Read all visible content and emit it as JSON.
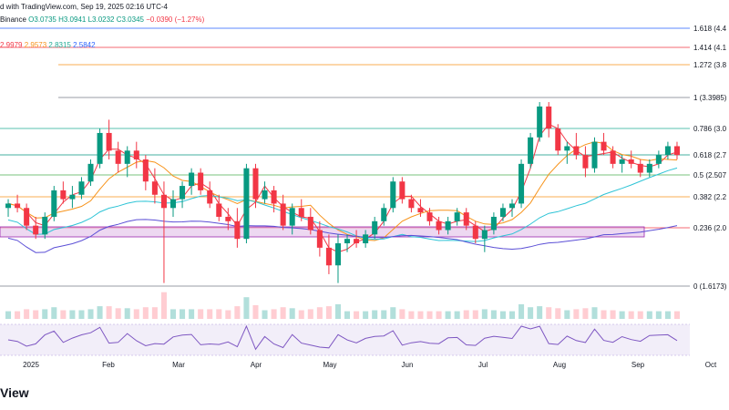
{
  "header": {
    "publisher": "d with TradingView.com, Sep 19, 2025 02:16 UTC-4",
    "exchange": "Binance",
    "ohlc": {
      "o": "O3.0735",
      "h": "H3.0941",
      "l": "L3.0232",
      "c": "C3.0345",
      "chg": "−0.0390 (−1.27%)"
    },
    "ma_values": {
      "v1": "2.9979",
      "v2": "2.9573",
      "v3": "2.8315",
      "v4": "2.5842"
    }
  },
  "fib_levels": [
    {
      "label": "1.618 (4.4",
      "price": 4.4,
      "color": "#2962ff"
    },
    {
      "label": "1.414 (4.1",
      "price": 4.1,
      "color": "#f23645"
    },
    {
      "label": "1.272 (3.8",
      "price": 3.8,
      "color": "#f7931a"
    },
    {
      "label": "1 (3.3985)",
      "price": 3.3985,
      "color": "#787b86"
    },
    {
      "label": "0.786 (3.0",
      "price": 3.0,
      "color": "#22ab94"
    },
    {
      "label": "0.618 (2.7",
      "price": 2.7,
      "color": "#089981"
    },
    {
      "label": "0.5 (2.507",
      "price": 2.507,
      "color": "#4caf50"
    },
    {
      "label": "0.382 (2.2",
      "price": 2.2,
      "color": "#f7931a"
    },
    {
      "label": "0.236 (2.0",
      "price": 2.0,
      "color": "#f23645"
    },
    {
      "label": "0 (1.6173)",
      "price": 1.6173,
      "color": "#787b86"
    }
  ],
  "x_axis": [
    "2025",
    "Feb",
    "Mar",
    "Apr",
    "May",
    "Jun",
    "Jul",
    "Aug",
    "Sep",
    "Oct"
  ],
  "branding": "View",
  "colors": {
    "up": "#089981",
    "down": "#f23645",
    "ma_fast": "#f23645",
    "ma_mid": "#f7931a",
    "ma_slow": "#2ec4d6",
    "ma_long": "#5b4fd6",
    "rsi": "#7e57c2"
  },
  "chart_data": {
    "type": "candlestick",
    "ylim": [
      1.4,
      4.6
    ],
    "candles": [
      [
        2.45,
        2.55,
        2.35,
        2.5
      ],
      [
        2.5,
        2.6,
        2.4,
        2.45
      ],
      [
        2.45,
        2.5,
        2.2,
        2.25
      ],
      [
        2.25,
        2.35,
        2.1,
        2.15
      ],
      [
        2.15,
        2.4,
        2.1,
        2.35
      ],
      [
        2.35,
        2.7,
        2.3,
        2.65
      ],
      [
        2.65,
        2.75,
        2.5,
        2.55
      ],
      [
        2.55,
        2.7,
        2.45,
        2.6
      ],
      [
        2.6,
        2.8,
        2.55,
        2.75
      ],
      [
        2.75,
        3.0,
        2.7,
        2.95
      ],
      [
        2.95,
        3.35,
        2.9,
        3.3
      ],
      [
        3.3,
        3.45,
        3.0,
        3.1
      ],
      [
        3.1,
        3.2,
        2.85,
        2.95
      ],
      [
        2.95,
        3.15,
        2.8,
        3.1
      ],
      [
        3.1,
        3.2,
        2.9,
        3.0
      ],
      [
        3.0,
        3.05,
        2.65,
        2.75
      ],
      [
        2.75,
        2.9,
        2.5,
        2.6
      ],
      [
        2.6,
        2.75,
        1.6,
        2.45
      ],
      [
        2.45,
        2.65,
        2.35,
        2.55
      ],
      [
        2.55,
        2.75,
        2.45,
        2.7
      ],
      [
        2.7,
        2.9,
        2.6,
        2.85
      ],
      [
        2.85,
        2.9,
        2.6,
        2.65
      ],
      [
        2.65,
        2.75,
        2.45,
        2.5
      ],
      [
        2.5,
        2.6,
        2.3,
        2.35
      ],
      [
        2.35,
        2.45,
        2.2,
        2.3
      ],
      [
        2.3,
        2.45,
        2.0,
        2.1
      ],
      [
        2.1,
        2.95,
        2.05,
        2.9
      ],
      [
        2.9,
        2.95,
        2.45,
        2.55
      ],
      [
        2.55,
        2.75,
        2.5,
        2.65
      ],
      [
        2.65,
        2.7,
        2.4,
        2.5
      ],
      [
        2.5,
        2.6,
        2.2,
        2.25
      ],
      [
        2.25,
        2.5,
        2.15,
        2.45
      ],
      [
        2.45,
        2.55,
        2.3,
        2.35
      ],
      [
        2.35,
        2.45,
        2.15,
        2.2
      ],
      [
        2.2,
        2.3,
        1.9,
        2.0
      ],
      [
        2.0,
        2.15,
        1.7,
        1.8
      ],
      [
        1.8,
        2.15,
        1.6,
        2.05
      ],
      [
        2.05,
        2.15,
        1.95,
        2.1
      ],
      [
        2.1,
        2.2,
        2.0,
        2.05
      ],
      [
        2.05,
        2.2,
        2.0,
        2.15
      ],
      [
        2.15,
        2.35,
        2.1,
        2.3
      ],
      [
        2.3,
        2.5,
        2.25,
        2.45
      ],
      [
        2.45,
        2.8,
        2.4,
        2.75
      ],
      [
        2.75,
        2.8,
        2.5,
        2.55
      ],
      [
        2.55,
        2.6,
        2.4,
        2.45
      ],
      [
        2.45,
        2.55,
        2.35,
        2.4
      ],
      [
        2.4,
        2.45,
        2.25,
        2.3
      ],
      [
        2.3,
        2.35,
        2.15,
        2.2
      ],
      [
        2.2,
        2.35,
        2.15,
        2.3
      ],
      [
        2.3,
        2.45,
        2.25,
        2.4
      ],
      [
        2.4,
        2.45,
        2.2,
        2.25
      ],
      [
        2.25,
        2.3,
        2.05,
        2.1
      ],
      [
        2.1,
        2.25,
        1.95,
        2.2
      ],
      [
        2.2,
        2.4,
        2.15,
        2.35
      ],
      [
        2.35,
        2.5,
        2.3,
        2.45
      ],
      [
        2.45,
        2.55,
        2.35,
        2.5
      ],
      [
        2.5,
        3.0,
        2.45,
        2.95
      ],
      [
        2.95,
        3.3,
        2.9,
        3.25
      ],
      [
        3.25,
        3.65,
        3.2,
        3.6
      ],
      [
        3.6,
        3.65,
        3.25,
        3.35
      ],
      [
        3.35,
        3.4,
        3.05,
        3.1
      ],
      [
        3.1,
        3.2,
        2.95,
        3.15
      ],
      [
        3.15,
        3.3,
        3.0,
        3.05
      ],
      [
        3.05,
        3.15,
        2.8,
        2.9
      ],
      [
        2.9,
        3.25,
        2.85,
        3.2
      ],
      [
        3.2,
        3.3,
        3.05,
        3.1
      ],
      [
        3.1,
        3.15,
        2.9,
        2.95
      ],
      [
        2.95,
        3.05,
        2.85,
        3.0
      ],
      [
        3.0,
        3.1,
        2.9,
        2.95
      ],
      [
        2.95,
        3.0,
        2.8,
        2.85
      ],
      [
        2.85,
        3.0,
        2.8,
        2.95
      ],
      [
        2.95,
        3.1,
        2.9,
        3.05
      ],
      [
        3.05,
        3.2,
        3.0,
        3.15
      ],
      [
        3.15,
        3.2,
        3.0,
        3.05
      ]
    ]
  }
}
